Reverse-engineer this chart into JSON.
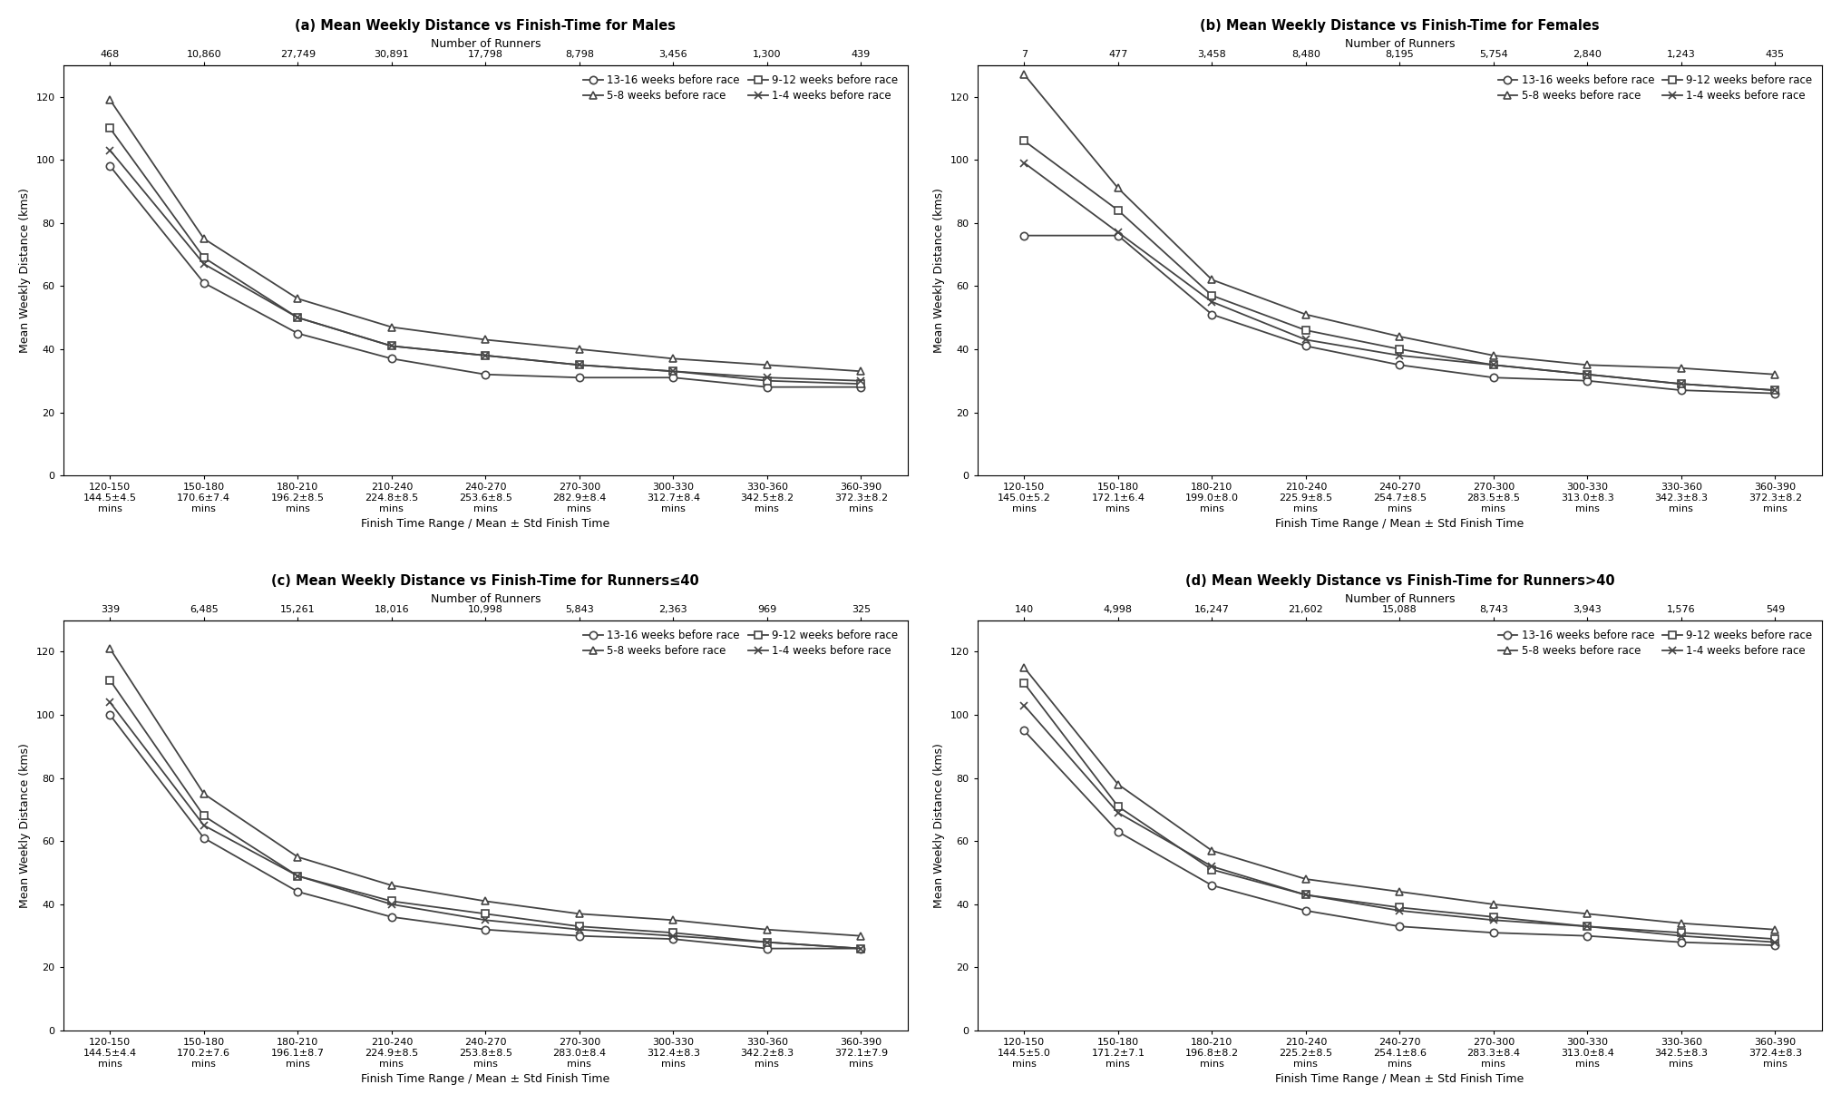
{
  "panels": [
    {
      "title": "(a) Mean Weekly Distance vs Finish-Time for Males",
      "num_runners": [
        "468",
        "10,860",
        "27,749",
        "30,891",
        "17,798",
        "8,798",
        "3,456",
        "1,300",
        "439"
      ],
      "x_labels_line1": [
        "120-150",
        "150-180",
        "180-210",
        "210-240",
        "240-270",
        "270-300",
        "300-330",
        "330-360",
        "360-390"
      ],
      "x_labels_line2": [
        "144.5±4.5",
        "170.6±7.4",
        "196.2±8.5",
        "224.8±8.5",
        "253.6±8.5",
        "282.9±8.4",
        "312.7±8.4",
        "342.5±8.2",
        "372.3±8.2"
      ],
      "x_labels_line3": [
        "mins",
        "mins",
        "mins",
        "mins",
        "mins",
        "mins",
        "mins",
        "mins",
        "mins"
      ],
      "series": {
        "13-16 weeks": [
          98,
          61,
          45,
          37,
          32,
          31,
          31,
          28,
          28
        ],
        "9-12 weeks": [
          110,
          69,
          50,
          41,
          38,
          35,
          33,
          30,
          29
        ],
        "5-8 weeks": [
          119,
          75,
          56,
          47,
          43,
          40,
          37,
          35,
          33
        ],
        "1-4 weeks": [
          103,
          67,
          50,
          41,
          38,
          35,
          33,
          31,
          30
        ]
      }
    },
    {
      "title": "(b) Mean Weekly Distance vs Finish-Time for Females",
      "num_runners": [
        "7",
        "477",
        "3,458",
        "8,480",
        "8,195",
        "5,754",
        "2,840",
        "1,243",
        "435"
      ],
      "x_labels_line1": [
        "120-150",
        "150-180",
        "180-210",
        "210-240",
        "240-270",
        "270-300",
        "300-330",
        "330-360",
        "360-390"
      ],
      "x_labels_line2": [
        "145.0±5.2",
        "172.1±6.4",
        "199.0±8.0",
        "225.9±8.5",
        "254.7±8.5",
        "283.5±8.5",
        "313.0±8.3",
        "342.3±8.3",
        "372.3±8.2"
      ],
      "x_labels_line3": [
        "mins",
        "mins",
        "mins",
        "mins",
        "mins",
        "mins",
        "mins",
        "mins",
        "mins"
      ],
      "series": {
        "13-16 weeks": [
          76,
          76,
          51,
          41,
          35,
          31,
          30,
          27,
          26
        ],
        "9-12 weeks": [
          106,
          84,
          57,
          46,
          40,
          35,
          32,
          29,
          27
        ],
        "5-8 weeks": [
          127,
          91,
          62,
          51,
          44,
          38,
          35,
          34,
          32
        ],
        "1-4 weeks": [
          99,
          77,
          55,
          43,
          38,
          35,
          32,
          29,
          27
        ]
      }
    },
    {
      "title": "(c) Mean Weekly Distance vs Finish-Time for Runners≤40",
      "num_runners": [
        "339",
        "6,485",
        "15,261",
        "18,016",
        "10,998",
        "5,843",
        "2,363",
        "969",
        "325"
      ],
      "x_labels_line1": [
        "120-150",
        "150-180",
        "180-210",
        "210-240",
        "240-270",
        "270-300",
        "300-330",
        "330-360",
        "360-390"
      ],
      "x_labels_line2": [
        "144.5±4.4",
        "170.2±7.6",
        "196.1±8.7",
        "224.9±8.5",
        "253.8±8.5",
        "283.0±8.4",
        "312.4±8.3",
        "342.2±8.3",
        "372.1±7.9"
      ],
      "x_labels_line3": [
        "mins",
        "mins",
        "mins",
        "mins",
        "mins",
        "mins",
        "mins",
        "mins",
        "mins"
      ],
      "series": {
        "13-16 weeks": [
          100,
          61,
          44,
          36,
          32,
          30,
          29,
          26,
          26
        ],
        "9-12 weeks": [
          111,
          68,
          49,
          41,
          37,
          33,
          31,
          28,
          26
        ],
        "5-8 weeks": [
          121,
          75,
          55,
          46,
          41,
          37,
          35,
          32,
          30
        ],
        "1-4 weeks": [
          104,
          65,
          49,
          40,
          35,
          32,
          30,
          28,
          26
        ]
      }
    },
    {
      "title": "(d) Mean Weekly Distance vs Finish-Time for Runners>40",
      "num_runners": [
        "140",
        "4,998",
        "16,247",
        "21,602",
        "15,088",
        "8,743",
        "3,943",
        "1,576",
        "549"
      ],
      "x_labels_line1": [
        "120-150",
        "150-180",
        "180-210",
        "210-240",
        "240-270",
        "270-300",
        "300-330",
        "330-360",
        "360-390"
      ],
      "x_labels_line2": [
        "144.5±5.0",
        "171.2±7.1",
        "196.8±8.2",
        "225.2±8.5",
        "254.1±8.6",
        "283.3±8.4",
        "313.0±8.4",
        "342.5±8.3",
        "372.4±8.3"
      ],
      "x_labels_line3": [
        "mins",
        "mins",
        "mins",
        "mins",
        "mins",
        "mins",
        "mins",
        "mins",
        "mins"
      ],
      "series": {
        "13-16 weeks": [
          95,
          63,
          46,
          38,
          33,
          31,
          30,
          28,
          27
        ],
        "9-12 weeks": [
          110,
          71,
          51,
          43,
          39,
          36,
          33,
          31,
          29
        ],
        "5-8 weeks": [
          115,
          78,
          57,
          48,
          44,
          40,
          37,
          34,
          32
        ],
        "1-4 weeks": [
          103,
          69,
          52,
          43,
          38,
          35,
          33,
          30,
          28
        ]
      }
    }
  ],
  "series_styles": {
    "13-16 weeks": {
      "marker": "o",
      "label": "13-16 weeks before race"
    },
    "9-12 weeks": {
      "marker": "s",
      "label": "9-12 weeks before race"
    },
    "5-8 weeks": {
      "marker": "^",
      "label": "5-8 weeks before race"
    },
    "1-4 weeks": {
      "marker": "x",
      "label": "1-4 weeks before race"
    }
  },
  "ylabel": "Mean Weekly Distance (kms)",
  "xlabel": "Finish Time Range / Mean ± Std Finish Time",
  "top_xlabel": "Number of Runners",
  "ylim": [
    0,
    130
  ],
  "yticks": [
    0,
    20,
    40,
    60,
    80,
    100,
    120
  ],
  "background_color": "#ffffff",
  "line_color": "#444444",
  "marker_facecolor": "white",
  "marker_size": 6,
  "linewidth": 1.3,
  "title_fontsize": 10.5,
  "label_fontsize": 9,
  "tick_fontsize": 8,
  "legend_fontsize": 8.5,
  "spine_color": "#000000"
}
